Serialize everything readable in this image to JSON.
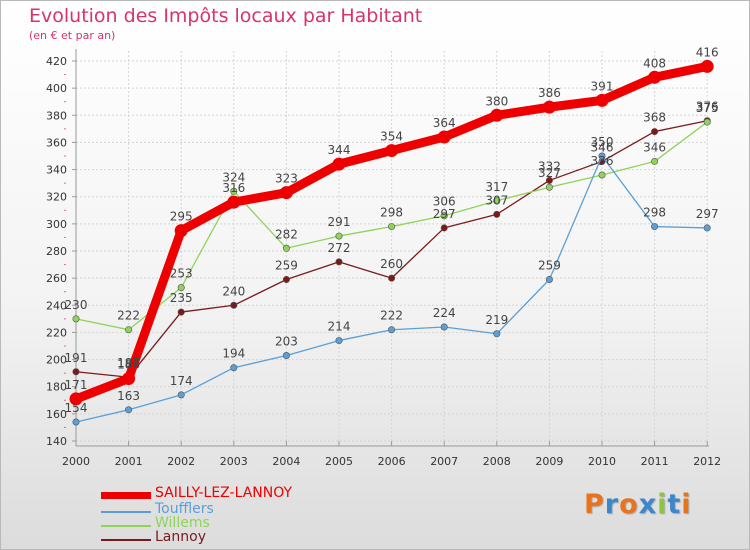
{
  "title": "Evolution des Impôts locaux par Habitant",
  "subtitle": "(en € et par an)",
  "chart_data": {
    "type": "line",
    "title": "Evolution des Impôts locaux par Habitant",
    "subtitle": "(en € et par an)",
    "xlabel": "",
    "ylabel": "",
    "ylim": [
      140,
      420
    ],
    "yticks": [
      140,
      160,
      180,
      200,
      220,
      240,
      260,
      280,
      300,
      320,
      340,
      360,
      380,
      400,
      420
    ],
    "x": [
      "2000",
      "2001",
      "2002",
      "2003",
      "2004",
      "2005",
      "2006",
      "2007",
      "2008",
      "2009",
      "2010",
      "2011",
      "2012"
    ],
    "grid": true,
    "legend_position": "bottom-left",
    "series": [
      {
        "name": "Lannoy",
        "color": "#7b1a1a",
        "values": [
          191,
          187,
          235,
          240,
          259,
          272,
          260,
          297,
          307,
          332,
          346,
          368,
          376
        ]
      },
      {
        "name": "Willems",
        "color": "#8fd35a",
        "values": [
          230,
          222,
          253,
          324,
          282,
          291,
          298,
          306,
          317,
          327,
          336,
          346,
          375
        ]
      },
      {
        "name": "Toufflers",
        "color": "#5b9fd6",
        "values": [
          154,
          163,
          174,
          194,
          203,
          214,
          222,
          224,
          219,
          259,
          350,
          298,
          297
        ]
      },
      {
        "name": "SAILLY-LEZ-LANNOY",
        "color": "#ee0000",
        "values": [
          171,
          186,
          295,
          316,
          323,
          344,
          354,
          364,
          380,
          386,
          391,
          408,
          416
        ]
      }
    ]
  },
  "legend": [
    {
      "name": "SAILLY-LEZ-LANNOY",
      "color": "#ee0000"
    },
    {
      "name": "Toufflers",
      "color": "#5b9fd6"
    },
    {
      "name": "Willems",
      "color": "#8fd35a"
    },
    {
      "name": "Lannoy",
      "color": "#7b1a1a"
    }
  ],
  "logo": {
    "letters": [
      "P",
      "r",
      "o",
      "x",
      "i",
      "t",
      "i"
    ],
    "colors": [
      "#e8731a",
      "#3b87c9",
      "#e8731a",
      "#3b87c9",
      "#8cc63f",
      "#3b87c9",
      "#e8731a"
    ]
  }
}
